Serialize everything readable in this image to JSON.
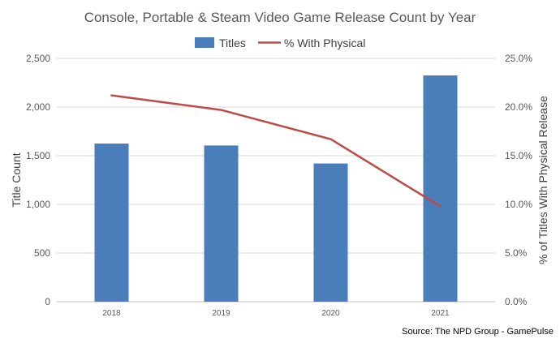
{
  "chart_data": {
    "type": "bar",
    "title": "Console, Portable & Steam Video Game Release Count by Year",
    "categories": [
      "2018",
      "2019",
      "2020",
      "2021"
    ],
    "series": [
      {
        "name": "Titles",
        "type": "bar",
        "axis": "left",
        "values": [
          1625,
          1605,
          1420,
          2325
        ],
        "color": "#4a7ebb"
      },
      {
        "name": "% With Physical",
        "type": "line",
        "axis": "right",
        "values": [
          21.2,
          19.7,
          16.7,
          9.8
        ],
        "color": "#be4b48"
      }
    ],
    "ylabel": "Title Count",
    "ylim": [
      0,
      2500
    ],
    "yticks": [
      "0",
      "500",
      "1,000",
      "1,500",
      "2,000",
      "2,500"
    ],
    "y2label": "% of Titles With Physical Release",
    "y2lim": [
      0,
      25
    ],
    "y2ticks": [
      "0.0%",
      "5.0%",
      "10.0%",
      "15.0%",
      "20.0%",
      "25.0%"
    ],
    "grid": true,
    "legend_position": "top",
    "source": "Source: The NPD Group - GamePulse"
  }
}
